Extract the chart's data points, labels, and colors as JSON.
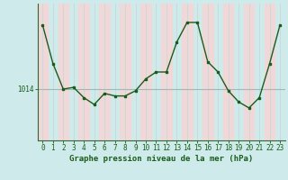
{
  "x": [
    0,
    1,
    2,
    3,
    4,
    5,
    6,
    7,
    8,
    9,
    10,
    11,
    12,
    13,
    14,
    15,
    16,
    17,
    18,
    19,
    20,
    21,
    22,
    23
  ],
  "y": [
    1021.5,
    1017.0,
    1014.0,
    1014.2,
    1013.0,
    1012.2,
    1013.5,
    1013.2,
    1013.2,
    1013.8,
    1015.2,
    1016.0,
    1016.0,
    1019.5,
    1021.8,
    1021.8,
    1017.2,
    1016.0,
    1013.8,
    1012.5,
    1011.8,
    1013.0,
    1017.0,
    1021.5
  ],
  "bg_color": "#ceeaea",
  "stripe_color": "#f0d8d8",
  "line_color": "#1a5c1a",
  "marker_color": "#1a5c1a",
  "hline_color": "#a0b8b8",
  "vline_color": "#c8d8d8",
  "xlabel": "Graphe pression niveau de la mer (hPa)",
  "ylabel_val": 1014,
  "xlim": [
    -0.5,
    23.5
  ],
  "ylim": [
    1008,
    1024
  ],
  "tick_fontsize": 5.5,
  "label_fontsize": 6.5,
  "ytick_label": "1014",
  "bottom_spine_color": "#336633",
  "left_spine_color": "#336633"
}
